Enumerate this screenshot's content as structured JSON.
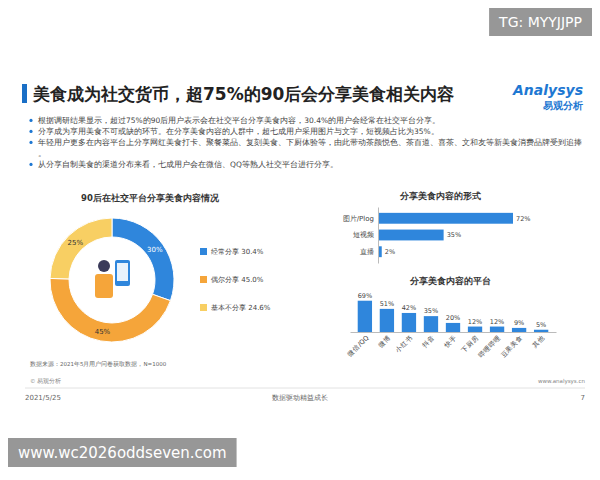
{
  "header": {
    "title": "美食成为社交货币，超75%的90后会分享美食相关内容",
    "logo": {
      "brand": "Analysys",
      "name": "易观分析"
    }
  },
  "bullets": [
    "根据调研结果显示，超过75%的90后用户表示会在社交平台分享美食内容，30.4%的用户会经常在社交平台分享。",
    "分享成为享用美食不可或缺的环节。在分享美食内容的人群中，超七成用户采用图片与文字，短视频占比为35%。",
    "年轻用户更多在内容平台上分享网红美食打卡、聚餐菜品、复刻美食、下厨体验等，由此带动茶颜悦色、茶百道、喜茶、文和友等新美食消费品牌受到追捧。",
    "从分享自制美食的渠道分布来看，七成用户会在微信、QQ等熟人社交平台进行分享。"
  ],
  "chart_data": [
    {
      "type": "pie",
      "title": "90后在社交平台分享美食内容情况",
      "categories": [
        "经常分享 30.4%",
        "偶尔分享 45.0%",
        "基本不分享 24.6%"
      ],
      "values": [
        30.4,
        45.0,
        24.6
      ],
      "value_labels": [
        "30%",
        "45%",
        "25%"
      ],
      "colors": [
        "#2f86dc",
        "#f5a53a",
        "#f8cf63"
      ],
      "data_labels": true,
      "legend": "right"
    },
    {
      "type": "bar",
      "orientation": "horizontal",
      "title": "分享美食内容的形式",
      "categories": [
        "图片/Plog",
        "短视频",
        "直播"
      ],
      "values": [
        72,
        35,
        2
      ],
      "value_labels": [
        "72%",
        "35%",
        "2%"
      ],
      "color": "#2f86dc",
      "xlim": [
        0,
        80
      ],
      "tick_labels": "y",
      "data_labels": true
    },
    {
      "type": "bar",
      "title": "分享美食内容的平台",
      "categories": [
        "微信/QQ",
        "微博",
        "小红书",
        "抖音",
        "快手",
        "下厨房",
        "哔哩哔哩",
        "豆果美食",
        "其他"
      ],
      "values": [
        69,
        51,
        42,
        35,
        20,
        12,
        12,
        9,
        5
      ],
      "value_labels": [
        "69%",
        "51%",
        "42%",
        "35%",
        "20%",
        "12%",
        "12%",
        "9%",
        "5%"
      ],
      "color": "#2f86dc",
      "ylim": [
        0,
        75
      ],
      "tick_labels": "x",
      "data_labels": true
    }
  ],
  "source": "数据来源：2021年5月用户问卷获取数据，N=1000",
  "footer": {
    "copyright": "© 易观分析",
    "website": "www.analysys.cn",
    "date": "2021/5/25",
    "slogan": "数据驱动精益成长",
    "page": "7"
  },
  "watermarks": [
    "TG: MYYJJPP",
    "www.wc2026oddseven.com"
  ]
}
